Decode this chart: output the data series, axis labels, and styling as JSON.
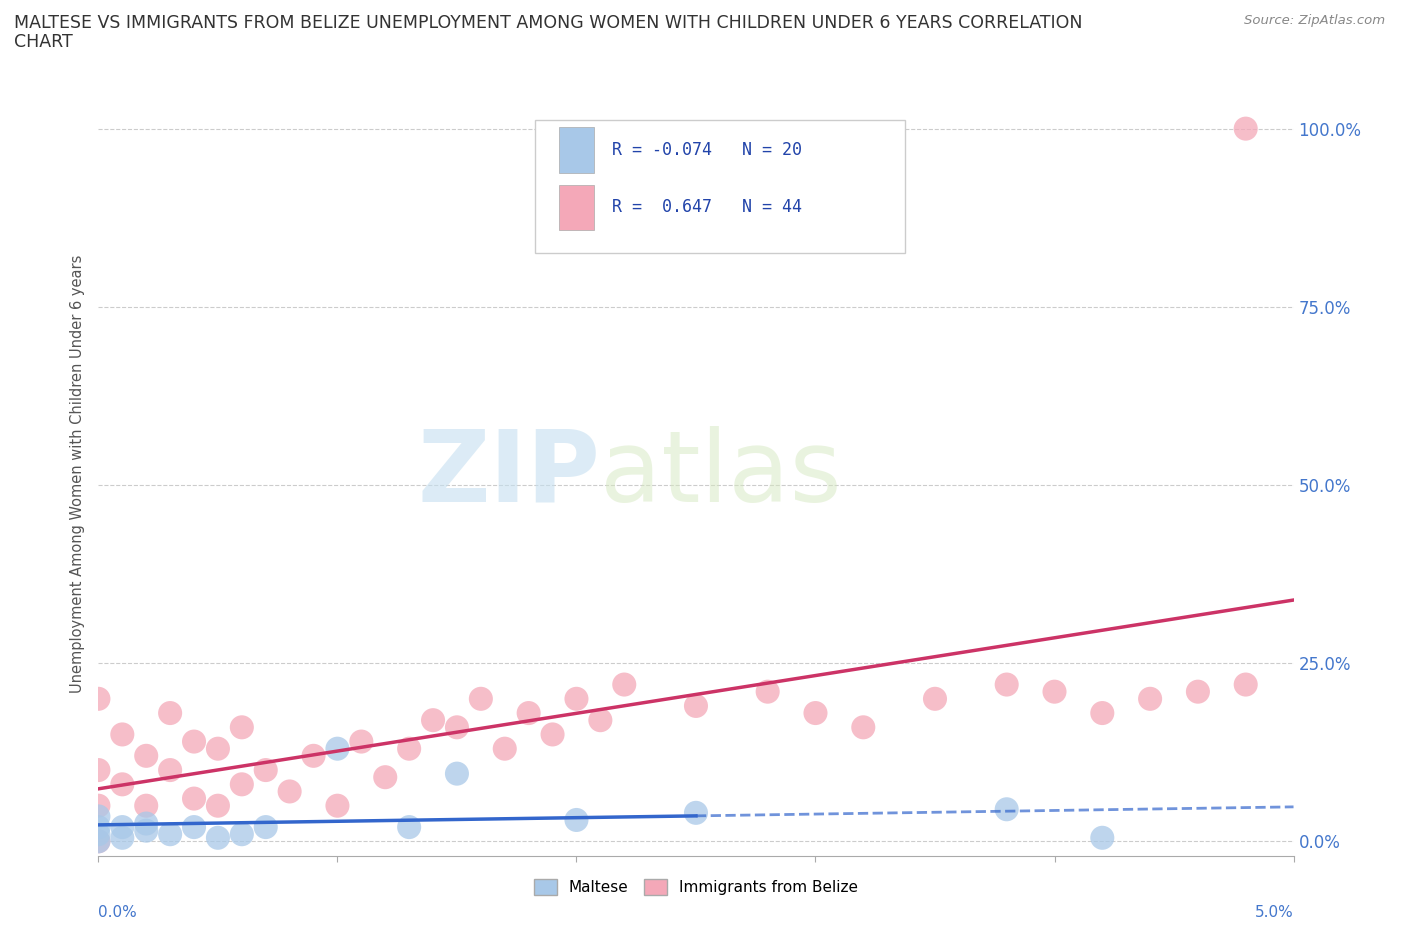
{
  "title_line1": "MALTESE VS IMMIGRANTS FROM BELIZE UNEMPLOYMENT AMONG WOMEN WITH CHILDREN UNDER 6 YEARS CORRELATION",
  "title_line2": "CHART",
  "source": "Source: ZipAtlas.com",
  "ylabel": "Unemployment Among Women with Children Under 6 years",
  "watermark_zip": "ZIP",
  "watermark_atlas": "atlas",
  "maltese_R": -0.074,
  "maltese_N": 20,
  "belize_R": 0.647,
  "belize_N": 44,
  "blue_marker_color": "#a8c8e8",
  "pink_marker_color": "#f4a8b8",
  "blue_line_color": "#3366cc",
  "pink_line_color": "#cc3366",
  "legend_blue": "#a8c8e8",
  "legend_pink": "#f4a8b8",
  "maltese_x": [
    0.0,
    0.0,
    0.0,
    0.0,
    0.001,
    0.001,
    0.002,
    0.002,
    0.003,
    0.004,
    0.005,
    0.006,
    0.007,
    0.01,
    0.013,
    0.015,
    0.02,
    0.025,
    0.038,
    0.042
  ],
  "maltese_y": [
    0.0,
    0.01,
    0.02,
    0.035,
    0.005,
    0.02,
    0.015,
    0.025,
    0.01,
    0.02,
    0.005,
    0.01,
    0.02,
    0.13,
    0.02,
    0.095,
    0.03,
    0.04,
    0.045,
    0.005
  ],
  "belize_x": [
    0.0,
    0.0,
    0.0,
    0.0,
    0.001,
    0.001,
    0.002,
    0.002,
    0.003,
    0.003,
    0.004,
    0.004,
    0.005,
    0.005,
    0.006,
    0.006,
    0.007,
    0.008,
    0.009,
    0.01,
    0.011,
    0.012,
    0.013,
    0.014,
    0.015,
    0.016,
    0.017,
    0.018,
    0.019,
    0.02,
    0.021,
    0.022,
    0.025,
    0.028,
    0.03,
    0.032,
    0.035,
    0.038,
    0.04,
    0.042,
    0.044,
    0.046,
    0.048,
    0.048
  ],
  "belize_y": [
    0.0,
    0.05,
    0.1,
    0.2,
    0.08,
    0.15,
    0.05,
    0.12,
    0.1,
    0.18,
    0.06,
    0.14,
    0.05,
    0.13,
    0.08,
    0.16,
    0.1,
    0.07,
    0.12,
    0.05,
    0.14,
    0.09,
    0.13,
    0.17,
    0.16,
    0.2,
    0.13,
    0.18,
    0.15,
    0.2,
    0.17,
    0.22,
    0.19,
    0.21,
    0.18,
    0.16,
    0.2,
    0.22,
    0.21,
    0.18,
    0.2,
    0.21,
    0.22,
    1.0
  ],
  "xlim": [
    0.0,
    0.05
  ],
  "ylim": [
    -0.02,
    1.05
  ],
  "yticks": [
    0.0,
    0.25,
    0.5,
    0.75,
    1.0
  ],
  "ytick_labels": [
    "0.0%",
    "25.0%",
    "50.0%",
    "75.0%",
    "100.0%"
  ],
  "xtick_major": [
    0.0,
    0.01,
    0.02,
    0.03,
    0.04,
    0.05
  ],
  "grid_color": "#cccccc",
  "background_color": "#ffffff",
  "title_color": "#333333",
  "right_axis_color": "#4477cc"
}
